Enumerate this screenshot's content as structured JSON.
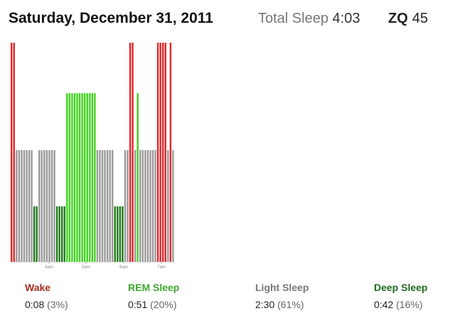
{
  "header": {
    "date": "Saturday, December 31, 2011",
    "total_sleep_label": "Total Sleep",
    "total_sleep_value": "4:03",
    "zq_label": "ZQ",
    "zq_value": "45"
  },
  "colors": {
    "wake": "#e3262b",
    "rem": "#3fd31c",
    "light": "#9a9a9a",
    "deep": "#1f7a1a",
    "wake_label": "#a0301e",
    "rem_label": "#3aa82a",
    "light_label": "#777777",
    "deep_label": "#1e6b1e"
  },
  "chart_data": {
    "type": "bar",
    "title": "",
    "stage_levels": {
      "wake": 4,
      "rem": 3,
      "light": 2,
      "deep": 1
    },
    "x_ticks": [
      "4am",
      "5am",
      "6am",
      "7am"
    ],
    "values": [
      "wake",
      "wake",
      "light",
      "light",
      "light",
      "light",
      "light",
      "light",
      "light",
      "deep",
      "deep",
      "light",
      "light",
      "light",
      "light",
      "light",
      "light",
      "light",
      "deep",
      "deep",
      "deep",
      "deep",
      "rem",
      "rem",
      "rem",
      "rem",
      "rem",
      "rem",
      "rem",
      "rem",
      "rem",
      "rem",
      "rem",
      "rem",
      "light",
      "light",
      "light",
      "light",
      "light",
      "light",
      "light",
      "deep",
      "deep",
      "deep",
      "deep",
      "light",
      "light",
      "wake",
      "wake",
      "light",
      "rem",
      "light",
      "light",
      "light",
      "light",
      "light",
      "light",
      "light",
      "wake",
      "wake",
      "wake",
      "wake",
      "light",
      "wake",
      "light"
    ]
  },
  "legend": [
    {
      "key": "wake",
      "label": "Wake",
      "duration": "0:08",
      "percent": "(3%)"
    },
    {
      "key": "rem",
      "label": "REM Sleep",
      "duration": "0:51",
      "percent": "(20%)"
    },
    {
      "key": "light",
      "label": "Light Sleep",
      "duration": "2:30",
      "percent": "(61%)"
    },
    {
      "key": "deep",
      "label": "Deep Sleep",
      "duration": "0:42",
      "percent": "(16%)"
    }
  ]
}
